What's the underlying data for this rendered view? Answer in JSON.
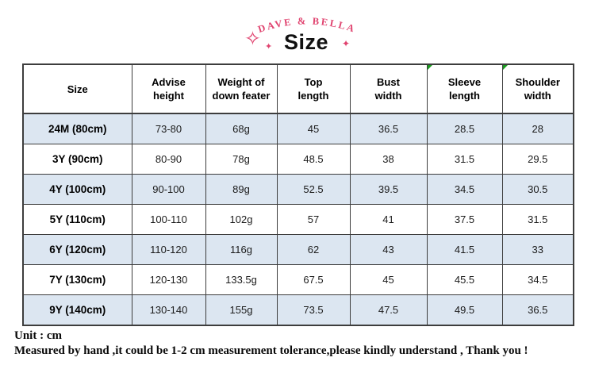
{
  "header": {
    "brand_name": "DAVE & BELLA",
    "page_title": "Size",
    "accent_color": "#e0436f",
    "decorations": {
      "sparkle_left_large": "✧",
      "sparkle_left_small": "✦",
      "sparkle_right": "✦"
    }
  },
  "chart_data": {
    "type": "table",
    "title": "Size",
    "unit": "cm",
    "columns": [
      "Size",
      "Advise height",
      "Weight of down feater",
      "Top length",
      "Bust width",
      "Sleeve length",
      "Shoulder width"
    ],
    "rows": [
      [
        "24M (80cm)",
        "73-80",
        "68g",
        "45",
        "36.5",
        "28.5",
        "28"
      ],
      [
        "3Y (90cm)",
        "80-90",
        "78g",
        "48.5",
        "38",
        "31.5",
        "29.5"
      ],
      [
        "4Y (100cm)",
        "90-100",
        "89g",
        "52.5",
        "39.5",
        "34.5",
        "30.5"
      ],
      [
        "5Y (110cm)",
        "100-110",
        "102g",
        "57",
        "41",
        "37.5",
        "31.5"
      ],
      [
        "6Y (120cm)",
        "110-120",
        "116g",
        "62",
        "43",
        "41.5",
        "33"
      ],
      [
        "7Y (130cm)",
        "120-130",
        "133.5g",
        "67.5",
        "45",
        "45.5",
        "34.5"
      ],
      [
        "9Y (140cm)",
        "130-140",
        "155g",
        "73.5",
        "47.5",
        "49.5",
        "36.5"
      ]
    ]
  },
  "table_presentation": {
    "column_lines": [
      [
        "Size"
      ],
      [
        "Advise",
        "height"
      ],
      [
        "Weight of",
        "down feater"
      ],
      [
        "Top",
        "length"
      ],
      [
        "Bust",
        "width"
      ],
      [
        "Sleeve",
        "length"
      ],
      [
        "Shoulder",
        "width"
      ]
    ],
    "error_indicator_columns": [
      5,
      6
    ],
    "stripe_color": "#dce6f1",
    "indicator_color": "#1a9a1f"
  },
  "footer": {
    "unit_line": "Unit : cm",
    "note_line": "Measured by hand ,it could be 1-2 cm measurement tolerance,please kindly understand , Thank you !"
  }
}
